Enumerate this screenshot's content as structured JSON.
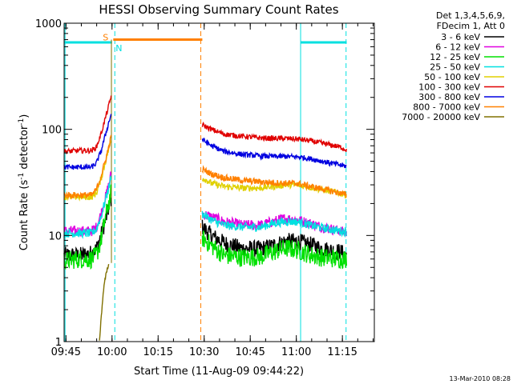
{
  "chart_data": {
    "type": "line",
    "title": "HESSI Observing Summary Count Rates",
    "xlabel": "Start Time (11-Aug-09 09:44:22)",
    "ylabel_main": "Count Rate (s",
    "ylabel_sup1": "-1",
    "ylabel_mid": " detector",
    "ylabel_sup2": "-1",
    "ylabel_end": ")",
    "timestamp": "13-Mar-2010 08:28",
    "x_unit": "minutes since 09:44:22",
    "xlim": [
      0,
      101
    ],
    "ylim": [
      1,
      1000
    ],
    "yscale": "log",
    "grid": false,
    "xticks": [
      {
        "t": 0.6,
        "label": "09:45"
      },
      {
        "t": 15.6,
        "label": "10:00"
      },
      {
        "t": 30.6,
        "label": "10:15"
      },
      {
        "t": 45.6,
        "label": "10:30"
      },
      {
        "t": 60.6,
        "label": "10:45"
      },
      {
        "t": 75.6,
        "label": "11:00"
      },
      {
        "t": 90.6,
        "label": "11:15"
      }
    ],
    "yticks": [
      {
        "v": 1,
        "label": "1"
      },
      {
        "v": 10,
        "label": "10"
      },
      {
        "v": 100,
        "label": "100"
      },
      {
        "v": 1000,
        "label": "1000"
      }
    ],
    "legend": {
      "position": "right",
      "header": [
        "Det 1,3,4,5,6,9,",
        "FDecim 1, Att 0"
      ],
      "items": [
        {
          "label": "3 - 6 keV",
          "color": "#000000"
        },
        {
          "label": "6 - 12 keV",
          "color": "#e000e0"
        },
        {
          "label": "12 - 25 keV",
          "color": "#00e000"
        },
        {
          "label": "25 - 50 keV",
          "color": "#00e0e0"
        },
        {
          "label": "50 - 100 keV",
          "color": "#e0d000"
        },
        {
          "label": "100 - 300 keV",
          "color": "#e00000"
        },
        {
          "label": "300 - 800 keV",
          "color": "#0000e0"
        },
        {
          "label": "800 - 7000 keV",
          "color": "#ff8000"
        },
        {
          "label": "7000 - 20000 keV",
          "color": "#807000"
        }
      ]
    },
    "series": [
      {
        "name": "3 - 6 keV",
        "color": "#000000",
        "noise": 0.08,
        "segments": [
          [
            [
              0,
              6.5
            ],
            [
              5,
              6.5
            ],
            [
              9,
              6.8
            ],
            [
              10.5,
              7.5
            ],
            [
              12,
              10
            ],
            [
              13.5,
              14
            ],
            [
              14.5,
              18
            ],
            [
              15.3,
              22
            ]
          ],
          [
            [
              45,
              12
            ],
            [
              48,
              10
            ],
            [
              52,
              8.5
            ],
            [
              58,
              7.5
            ],
            [
              64,
              7.5
            ],
            [
              68,
              8
            ],
            [
              72,
              8.8
            ],
            [
              76,
              8.8
            ],
            [
              80,
              8.2
            ],
            [
              84,
              7.5
            ],
            [
              90,
              7
            ],
            [
              92,
              6.5
            ]
          ]
        ]
      },
      {
        "name": "6 - 12 keV",
        "color": "#e000e0",
        "noise": 0.05,
        "segments": [
          [
            [
              0,
              11
            ],
            [
              5,
              11
            ],
            [
              9,
              11
            ],
            [
              10.5,
              12
            ],
            [
              12,
              16
            ],
            [
              13.5,
              23
            ],
            [
              14.5,
              30
            ],
            [
              15.3,
              38
            ]
          ],
          [
            [
              45,
              16
            ],
            [
              48,
              15
            ],
            [
              52,
              13.5
            ],
            [
              58,
              12.5
            ],
            [
              64,
              12.5
            ],
            [
              68,
              13.5
            ],
            [
              72,
              14.5
            ],
            [
              76,
              14
            ],
            [
              80,
              13
            ],
            [
              84,
              12
            ],
            [
              90,
              11
            ],
            [
              92,
              10.5
            ]
          ]
        ]
      },
      {
        "name": "12 - 25 keV",
        "color": "#00e000",
        "noise": 0.09,
        "segments": [
          [
            [
              0,
              5.8
            ],
            [
              5,
              6
            ],
            [
              9,
              6
            ],
            [
              10.5,
              6.5
            ],
            [
              12,
              9
            ],
            [
              13.5,
              15
            ],
            [
              14.5,
              20
            ],
            [
              15.3,
              25
            ]
          ],
          [
            [
              45,
              9.5
            ],
            [
              48,
              8
            ],
            [
              52,
              6.5
            ],
            [
              58,
              6.2
            ],
            [
              64,
              6.3
            ],
            [
              68,
              7
            ],
            [
              72,
              7.6
            ],
            [
              76,
              7.3
            ],
            [
              80,
              6.6
            ],
            [
              84,
              6.2
            ],
            [
              90,
              6
            ],
            [
              92,
              6
            ]
          ]
        ]
      },
      {
        "name": "25 - 50 keV",
        "color": "#00e0e0",
        "noise": 0.04,
        "segments": [
          [
            [
              0,
              10.5
            ],
            [
              5,
              10.5
            ],
            [
              9,
              10.5
            ],
            [
              10.5,
              11.5
            ],
            [
              12,
              15
            ],
            [
              13.5,
              22
            ],
            [
              14.5,
              28
            ],
            [
              15.3,
              36
            ]
          ],
          [
            [
              45,
              16
            ],
            [
              48,
              14
            ],
            [
              52,
              12.5
            ],
            [
              58,
              12
            ],
            [
              64,
              12
            ],
            [
              68,
              13
            ],
            [
              72,
              13.5
            ],
            [
              76,
              13.5
            ],
            [
              80,
              12.5
            ],
            [
              84,
              11.8
            ],
            [
              90,
              11
            ],
            [
              92,
              10.8
            ]
          ]
        ]
      },
      {
        "name": "50 - 100 keV",
        "color": "#e0d000",
        "noise": 0.03,
        "segments": [
          [
            [
              0,
              23
            ],
            [
              5,
              23
            ],
            [
              9,
              23
            ],
            [
              10.5,
              25
            ],
            [
              12,
              34
            ],
            [
              13.5,
              50
            ],
            [
              14.5,
              65
            ],
            [
              15.3,
              80
            ]
          ],
          [
            [
              45,
              35
            ],
            [
              48,
              31
            ],
            [
              52,
              29
            ],
            [
              58,
              28
            ],
            [
              64,
              28
            ],
            [
              68,
              29
            ],
            [
              72,
              30
            ],
            [
              76,
              30
            ],
            [
              80,
              28.5
            ],
            [
              84,
              27
            ],
            [
              90,
              25
            ],
            [
              92,
              24
            ]
          ]
        ]
      },
      {
        "name": "100 - 300 keV",
        "color": "#e00000",
        "noise": 0.025,
        "segments": [
          [
            [
              0,
              62
            ],
            [
              5,
              63
            ],
            [
              9,
              63
            ],
            [
              10.5,
              68
            ],
            [
              12,
              90
            ],
            [
              13.5,
              130
            ],
            [
              14.5,
              165
            ],
            [
              15.3,
              205
            ]
          ],
          [
            [
              45,
              110
            ],
            [
              48,
              100
            ],
            [
              52,
              90
            ],
            [
              58,
              86
            ],
            [
              64,
              83
            ],
            [
              68,
              82
            ],
            [
              72,
              82
            ],
            [
              76,
              81
            ],
            [
              80,
              78
            ],
            [
              84,
              74
            ],
            [
              90,
              68
            ],
            [
              92,
              64
            ]
          ]
        ]
      },
      {
        "name": "300 - 800 keV",
        "color": "#0000e0",
        "noise": 0.025,
        "segments": [
          [
            [
              0,
              44
            ],
            [
              5,
              44
            ],
            [
              9,
              44
            ],
            [
              10.5,
              48
            ],
            [
              12,
              62
            ],
            [
              13.5,
              90
            ],
            [
              14.5,
              115
            ],
            [
              15.3,
              140
            ]
          ],
          [
            [
              45,
              80
            ],
            [
              48,
              70
            ],
            [
              52,
              62
            ],
            [
              58,
              58
            ],
            [
              64,
              56
            ],
            [
              68,
              55.5
            ],
            [
              72,
              55.5
            ],
            [
              76,
              55
            ],
            [
              80,
              53
            ],
            [
              84,
              50
            ],
            [
              90,
              46
            ],
            [
              92,
              45
            ]
          ]
        ]
      },
      {
        "name": "800 - 7000 keV",
        "color": "#ff8000",
        "noise": 0.03,
        "segments": [
          [
            [
              0,
              24
            ],
            [
              5,
              24
            ],
            [
              9,
              24
            ],
            [
              10.5,
              27
            ],
            [
              12,
              36
            ],
            [
              13.5,
              52
            ],
            [
              14.5,
              68
            ],
            [
              15.3,
              85
            ]
          ],
          [
            [
              45,
              42
            ],
            [
              48,
              38
            ],
            [
              52,
              35
            ],
            [
              58,
              33
            ],
            [
              64,
              32
            ],
            [
              68,
              31.5
            ],
            [
              72,
              31
            ],
            [
              76,
              31
            ],
            [
              80,
              29
            ],
            [
              84,
              27.5
            ],
            [
              90,
              25
            ],
            [
              92,
              24
            ]
          ]
        ]
      },
      {
        "name": "7000 - 20000 keV",
        "color": "#807000",
        "noise": 0.02,
        "segments": [
          [
            [
              11.5,
              1
            ],
            [
              12,
              1.6
            ],
            [
              12.6,
              2.6
            ],
            [
              13.2,
              3.8
            ],
            [
              13.8,
              4.5
            ],
            [
              14.2,
              5
            ],
            [
              14.6,
              5.8
            ]
          ]
        ]
      }
    ],
    "flags": {
      "saa": {
        "label": "S",
        "color": "#ff8000",
        "value": 700,
        "t_start": 16,
        "t_end": 45,
        "line_t": 44.5
      },
      "night": {
        "label": "N",
        "color": "#00e0e0",
        "value": 660,
        "spans": [
          [
            0,
            15.6
          ],
          [
            77,
            92
          ]
        ],
        "lines_solid": [
          0.3,
          77
        ],
        "lines_dashed": [
          16.5,
          91.8
        ]
      }
    },
    "saa_segment": {
      "color": "#807000",
      "t": 15.4,
      "from": 5.5,
      "to": 700
    }
  }
}
